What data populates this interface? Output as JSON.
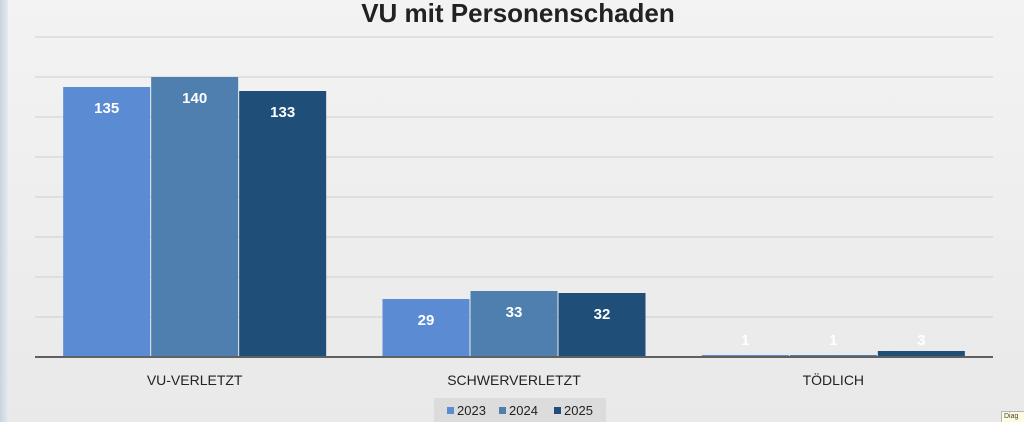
{
  "chart_data": {
    "type": "bar",
    "title": "VU mit Personenschaden",
    "categories": [
      "VU-VERLETZT",
      "SCHWERVERLETZT",
      "TÖDLICH"
    ],
    "series": [
      {
        "name": "2023",
        "color": "#5b8bd2",
        "values": [
          135,
          29,
          1
        ]
      },
      {
        "name": "2024",
        "color": "#4f7fae",
        "values": [
          140,
          33,
          1
        ]
      },
      {
        "name": "2025",
        "color": "#1f4e79",
        "values": [
          133,
          32,
          3
        ]
      }
    ],
    "xlabel": "",
    "ylabel": "",
    "ylim": [
      0,
      160
    ],
    "grid": true,
    "legend": "bottom"
  },
  "corner_tooltip": "Diag"
}
